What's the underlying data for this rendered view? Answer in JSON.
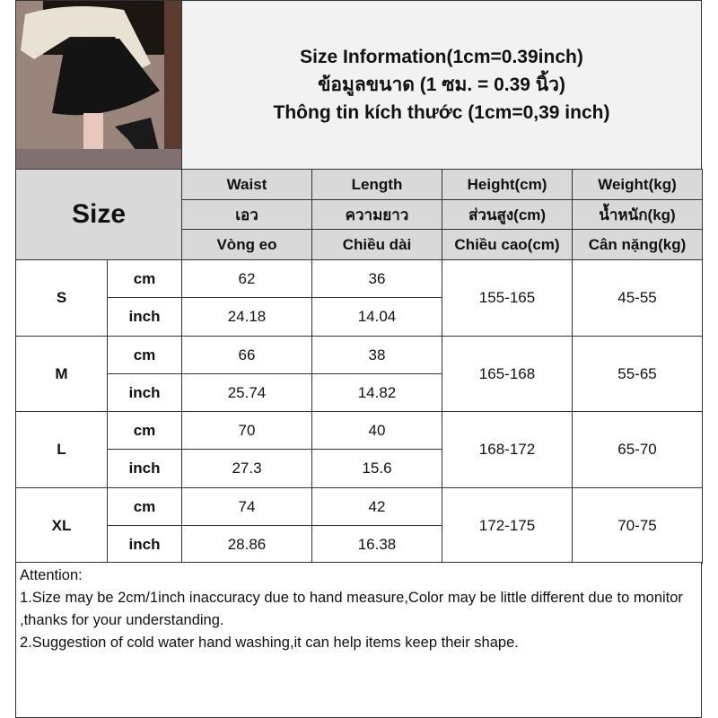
{
  "title": {
    "line1": "Size Information(1cm=0.39inch)",
    "line2": "ข้อมูลขนาด (1 ซม. = 0.39 นิ้ว)",
    "line3": "Thông tin kích thước (1cm=0,39 inch)"
  },
  "size_header": "Size",
  "columns": [
    {
      "en": "Waist",
      "th": "เอว",
      "vi": "Vòng eo"
    },
    {
      "en": "Length",
      "th": "ความยาว",
      "vi": "Chiều dài"
    },
    {
      "en": "Height(cm)",
      "th": "ส่วนสูง(cm)",
      "vi": "Chiều cao(cm)"
    },
    {
      "en": "Weight(kg)",
      "th": "น้ำหนัก(kg)",
      "vi": "Cân nặng(kg)"
    }
  ],
  "rows": [
    {
      "size": "S",
      "cm_label": "cm",
      "inch_label": "inch",
      "waist_cm": "62",
      "length_cm": "36",
      "waist_inch": "24.18",
      "length_inch": "14.04",
      "height": "155-165",
      "weight": "45-55"
    },
    {
      "size": "M",
      "cm_label": "cm",
      "inch_label": "inch",
      "waist_cm": "66",
      "length_cm": "38",
      "waist_inch": "25.74",
      "length_inch": "14.82",
      "height": "165-168",
      "weight": "55-65"
    },
    {
      "size": "L",
      "cm_label": "cm",
      "inch_label": "inch",
      "waist_cm": "70",
      "length_cm": "40",
      "waist_inch": "27.3",
      "length_inch": "15.6",
      "height": "168-172",
      "weight": "65-70"
    },
    {
      "size": "XL",
      "cm_label": "cm",
      "inch_label": "inch",
      "waist_cm": "74",
      "length_cm": "42",
      "waist_inch": "28.86",
      "length_inch": "16.38",
      "height": "172-175",
      "weight": "70-75"
    }
  ],
  "attention": {
    "heading": "Attention:",
    "note1": "1.Size may be 2cm/1inch inaccuracy due to hand measure,Color may be little different due to monitor ,thanks for your understanding.",
    "note2": "2.Suggestion of cold water hand washing,it can help items keep their shape."
  }
}
